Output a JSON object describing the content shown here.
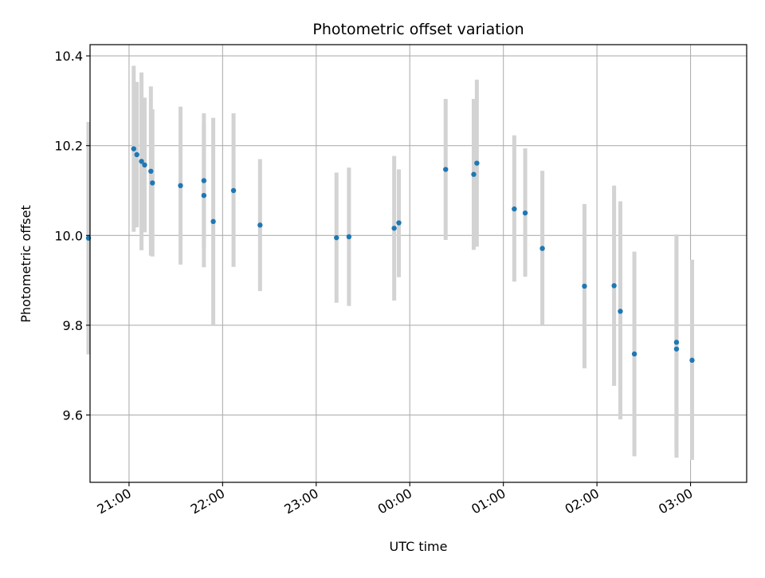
{
  "chart_data": {
    "type": "scatter",
    "title": "Photometric offset variation",
    "xlabel": "UTC time",
    "ylabel": "Photometric offset",
    "xlim": [
      "20:35",
      "03:36"
    ],
    "ylim": [
      9.45,
      10.425
    ],
    "x_ticks": [
      "21:00",
      "22:00",
      "23:00",
      "00:00",
      "01:00",
      "02:00",
      "03:00"
    ],
    "y_ticks": [
      "9.6",
      "9.8",
      "10.0",
      "10.2",
      "10.4"
    ],
    "grid": true,
    "legend": "none",
    "colors": {
      "point": "#1f77b4",
      "errorbar": "#d3d3d3",
      "grid": "#b0b0b0"
    },
    "points": [
      {
        "time": "20:34",
        "y": 9.994,
        "err_low": 9.735,
        "err_high": 10.253
      },
      {
        "time": "21:03",
        "y": 10.193,
        "err_low": 10.008,
        "err_high": 10.378
      },
      {
        "time": "21:05",
        "y": 10.18,
        "err_low": 10.018,
        "err_high": 10.342
      },
      {
        "time": "21:08",
        "y": 10.165,
        "err_low": 9.967,
        "err_high": 10.363
      },
      {
        "time": "21:10",
        "y": 10.157,
        "err_low": 10.007,
        "err_high": 10.307
      },
      {
        "time": "21:14",
        "y": 10.143,
        "err_low": 9.955,
        "err_high": 10.332
      },
      {
        "time": "21:15",
        "y": 10.117,
        "err_low": 9.953,
        "err_high": 10.281
      },
      {
        "time": "21:33",
        "y": 10.111,
        "err_low": 9.935,
        "err_high": 10.287
      },
      {
        "time": "21:48",
        "y": 10.122,
        "err_low": 9.972,
        "err_high": 10.272
      },
      {
        "time": "21:48",
        "y": 10.089,
        "err_low": 9.929,
        "err_high": 10.249
      },
      {
        "time": "21:54",
        "y": 10.031,
        "err_low": 9.8,
        "err_high": 10.262
      },
      {
        "time": "22:07",
        "y": 10.1,
        "err_low": 9.93,
        "err_high": 10.272
      },
      {
        "time": "22:24",
        "y": 10.023,
        "err_low": 9.876,
        "err_high": 10.17
      },
      {
        "time": "23:13",
        "y": 9.995,
        "err_low": 9.85,
        "err_high": 10.14
      },
      {
        "time": "23:21",
        "y": 9.997,
        "err_low": 9.843,
        "err_high": 10.151
      },
      {
        "time": "23:50",
        "y": 10.016,
        "err_low": 9.855,
        "err_high": 10.177
      },
      {
        "time": "23:53",
        "y": 10.028,
        "err_low": 9.907,
        "err_high": 10.147
      },
      {
        "time": "00:23",
        "y": 10.147,
        "err_low": 9.99,
        "err_high": 10.304
      },
      {
        "time": "00:41",
        "y": 10.136,
        "err_low": 9.968,
        "err_high": 10.304
      },
      {
        "time": "00:43",
        "y": 10.161,
        "err_low": 9.975,
        "err_high": 10.347
      },
      {
        "time": "01:07",
        "y": 10.059,
        "err_low": 9.897,
        "err_high": 10.223
      },
      {
        "time": "01:14",
        "y": 10.05,
        "err_low": 9.908,
        "err_high": 10.194
      },
      {
        "time": "01:25",
        "y": 9.971,
        "err_low": 9.8,
        "err_high": 10.144
      },
      {
        "time": "01:52",
        "y": 9.887,
        "err_low": 9.704,
        "err_high": 10.07
      },
      {
        "time": "02:11",
        "y": 9.888,
        "err_low": 9.665,
        "err_high": 10.111
      },
      {
        "time": "02:15",
        "y": 9.831,
        "err_low": 9.59,
        "err_high": 10.076
      },
      {
        "time": "02:24",
        "y": 9.736,
        "err_low": 9.508,
        "err_high": 9.964
      },
      {
        "time": "02:51",
        "y": 9.762,
        "err_low": 9.52,
        "err_high": 10.002
      },
      {
        "time": "02:51",
        "y": 9.747,
        "err_low": 9.505,
        "err_high": 9.99
      },
      {
        "time": "03:01",
        "y": 9.722,
        "err_low": 9.5,
        "err_high": 9.946
      }
    ]
  }
}
